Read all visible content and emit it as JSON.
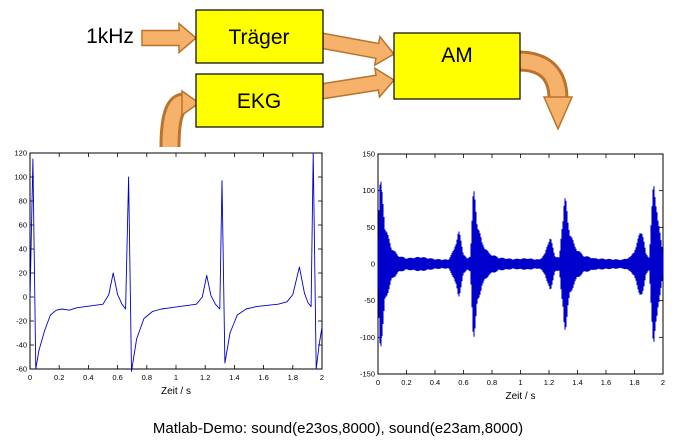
{
  "diagram": {
    "input_label": "1kHz",
    "blocks": {
      "traeger": "Träger",
      "ekg": "EKG",
      "am": "AM"
    },
    "colors": {
      "box_fill": "#ffff00",
      "box_stroke": "#000000",
      "arrow_fill": "#f6b26b",
      "arrow_stroke": "#b8742c"
    }
  },
  "caption": "Matlab-Demo: sound(e23os,8000), sound(e23am,8000)",
  "chart_data": [
    {
      "type": "line",
      "render": "polyline",
      "title": "",
      "xlabel": "Zeit / s",
      "ylabel": "",
      "xlim": [
        0,
        2
      ],
      "ylim": [
        -60,
        120
      ],
      "xticks": [
        "0",
        "0.2",
        "0.4",
        "0.6",
        "0.8",
        "1",
        "1.2",
        "1.4",
        "1.6",
        "1.8",
        "2"
      ],
      "yticks": [
        "-60",
        "-40",
        "-20",
        "0",
        "20",
        "40",
        "60",
        "80",
        "100",
        "120"
      ],
      "line_color": "#0000cc",
      "grid": false,
      "points": [
        [
          0,
          -2
        ],
        [
          0.02,
          115
        ],
        [
          0.04,
          -60
        ],
        [
          0.06,
          -45
        ],
        [
          0.1,
          -28
        ],
        [
          0.14,
          -15
        ],
        [
          0.18,
          -11
        ],
        [
          0.22,
          -10
        ],
        [
          0.27,
          -11
        ],
        [
          0.32,
          -9
        ],
        [
          0.38,
          -8
        ],
        [
          0.44,
          -7
        ],
        [
          0.5,
          -6
        ],
        [
          0.54,
          2
        ],
        [
          0.57,
          20
        ],
        [
          0.6,
          2
        ],
        [
          0.63,
          -6
        ],
        [
          0.655,
          -10
        ],
        [
          0.675,
          100
        ],
        [
          0.695,
          -62
        ],
        [
          0.73,
          -35
        ],
        [
          0.78,
          -18
        ],
        [
          0.84,
          -12
        ],
        [
          0.9,
          -10
        ],
        [
          0.96,
          -9
        ],
        [
          1.02,
          -8
        ],
        [
          1.08,
          -7
        ],
        [
          1.14,
          -6
        ],
        [
          1.18,
          0
        ],
        [
          1.21,
          18
        ],
        [
          1.24,
          1
        ],
        [
          1.27,
          -6
        ],
        [
          1.3,
          -10
        ],
        [
          1.315,
          97
        ],
        [
          1.335,
          -55
        ],
        [
          1.37,
          -30
        ],
        [
          1.42,
          -15
        ],
        [
          1.48,
          -10
        ],
        [
          1.55,
          -8
        ],
        [
          1.62,
          -7
        ],
        [
          1.7,
          -6
        ],
        [
          1.76,
          -4
        ],
        [
          1.8,
          2
        ],
        [
          1.845,
          25
        ],
        [
          1.88,
          3
        ],
        [
          1.905,
          -5
        ],
        [
          1.925,
          -8
        ],
        [
          1.94,
          120
        ],
        [
          1.96,
          -60
        ],
        [
          1.98,
          -40
        ],
        [
          2,
          -25
        ]
      ]
    },
    {
      "type": "line",
      "render": "envelope",
      "title": "",
      "xlabel": "Zeit / s",
      "ylabel": "",
      "xlim": [
        0,
        2
      ],
      "ylim": [
        -150,
        150
      ],
      "xticks": [
        "0",
        "0.2",
        "0.4",
        "0.6",
        "0.8",
        "1",
        "1.2",
        "1.4",
        "1.6",
        "1.8",
        "2"
      ],
      "yticks": [
        "-150",
        "-100",
        "-50",
        "0",
        "50",
        "100",
        "150"
      ],
      "line_color": "#0000cc",
      "grid": false,
      "envelope_points": [
        [
          0,
          4
        ],
        [
          0.02,
          115
        ],
        [
          0.05,
          55
        ],
        [
          0.09,
          25
        ],
        [
          0.14,
          12
        ],
        [
          0.2,
          8
        ],
        [
          0.3,
          10
        ],
        [
          0.4,
          7
        ],
        [
          0.5,
          6
        ],
        [
          0.54,
          20
        ],
        [
          0.57,
          45
        ],
        [
          0.6,
          15
        ],
        [
          0.63,
          6
        ],
        [
          0.655,
          12
        ],
        [
          0.675,
          100
        ],
        [
          0.695,
          62
        ],
        [
          0.73,
          30
        ],
        [
          0.78,
          15
        ],
        [
          0.85,
          9
        ],
        [
          0.95,
          7
        ],
        [
          1.05,
          8
        ],
        [
          1.14,
          6
        ],
        [
          1.18,
          15
        ],
        [
          1.21,
          38
        ],
        [
          1.24,
          12
        ],
        [
          1.28,
          8
        ],
        [
          1.315,
          95
        ],
        [
          1.335,
          55
        ],
        [
          1.38,
          25
        ],
        [
          1.44,
          12
        ],
        [
          1.52,
          8
        ],
        [
          1.62,
          7
        ],
        [
          1.72,
          6
        ],
        [
          1.78,
          10
        ],
        [
          1.82,
          25
        ],
        [
          1.85,
          50
        ],
        [
          1.88,
          15
        ],
        [
          1.91,
          8
        ],
        [
          1.94,
          115
        ],
        [
          1.965,
          60
        ],
        [
          1.99,
          30
        ],
        [
          2,
          20
        ]
      ]
    }
  ]
}
